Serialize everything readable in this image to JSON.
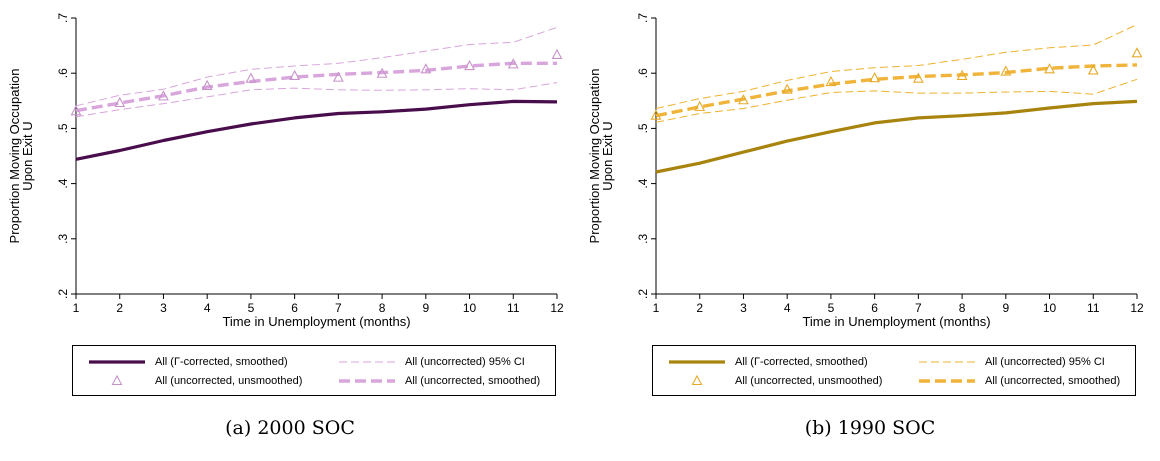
{
  "panels": [
    {
      "caption": "(a) 2000 SOC",
      "chart_data": {
        "type": "line",
        "xlabel": "Time in Unemployment (months)",
        "ylabel": [
          "Proportion Moving Occupation",
          "Upon Exit U"
        ],
        "xlim": [
          1,
          12
        ],
        "ylim": [
          0.2,
          0.7
        ],
        "x_ticks": [
          "1",
          "2",
          "3",
          "4",
          "5",
          "6",
          "7",
          "8",
          "9",
          "10",
          "11",
          "12"
        ],
        "y_ticks": [
          ".2",
          ".3",
          ".4",
          ".5",
          ".6",
          ".7"
        ],
        "x": [
          1,
          2,
          3,
          4,
          5,
          6,
          7,
          8,
          9,
          10,
          11,
          12
        ],
        "series": [
          {
            "name": "All (Γ-corrected, smoothed)",
            "style": "solid-thick",
            "color": "#4a0d4c",
            "values": [
              0.444,
              0.46,
              0.478,
              0.494,
              0.508,
              0.519,
              0.527,
              0.53,
              0.535,
              0.543,
              0.549,
              0.548
            ]
          },
          {
            "name": "All (uncorrected) 95% CI",
            "style": "dashed-thin",
            "color": "#d8a5dc",
            "upper": [
              0.541,
              0.56,
              0.571,
              0.593,
              0.607,
              0.613,
              0.618,
              0.628,
              0.64,
              0.652,
              0.656,
              0.683
            ],
            "lower": [
              0.521,
              0.534,
              0.545,
              0.557,
              0.57,
              0.573,
              0.57,
              0.569,
              0.57,
              0.572,
              0.57,
              0.583
            ]
          },
          {
            "name": "All (uncorrected, unsmoothed)",
            "style": "triangle",
            "color": "#c693c9",
            "values": [
              0.531,
              0.546,
              0.558,
              0.577,
              0.59,
              0.595,
              0.592,
              0.599,
              0.607,
              0.613,
              0.616,
              0.633
            ]
          },
          {
            "name": "All (uncorrected, smoothed)",
            "style": "dashed-thick",
            "color": "#d8a5dc",
            "values": [
              0.532,
              0.546,
              0.559,
              0.575,
              0.585,
              0.593,
              0.598,
              0.601,
              0.605,
              0.613,
              0.618,
              0.618
            ]
          }
        ],
        "legend": {
          "placement": "bottom",
          "columns": 2,
          "items": [
            {
              "label": "All (Γ-corrected, smoothed)",
              "series": 0
            },
            {
              "label": "All (uncorrected) 95% CI",
              "series": 1
            },
            {
              "label": "All (uncorrected, unsmoothed)",
              "series": 2
            },
            {
              "label": "All (uncorrected, smoothed)",
              "series": 3
            }
          ]
        }
      }
    },
    {
      "caption": "(b) 1990 SOC",
      "chart_data": {
        "type": "line",
        "xlabel": "Time in Unemployment (months)",
        "ylabel": [
          "Proportion Moving Occupation",
          "Upon Exit U"
        ],
        "xlim": [
          1,
          12
        ],
        "ylim": [
          0.2,
          0.7
        ],
        "x_ticks": [
          "1",
          "2",
          "3",
          "4",
          "5",
          "6",
          "7",
          "8",
          "9",
          "10",
          "11",
          "12"
        ],
        "y_ticks": [
          ".2",
          ".3",
          ".4",
          ".5",
          ".6",
          ".7"
        ],
        "x": [
          1,
          2,
          3,
          4,
          5,
          6,
          7,
          8,
          9,
          10,
          11,
          12
        ],
        "series": [
          {
            "name": "All (Γ-corrected, smoothed)",
            "style": "solid-thick",
            "color": "#a8840e",
            "values": [
              0.421,
              0.437,
              0.457,
              0.477,
              0.494,
              0.51,
              0.519,
              0.523,
              0.528,
              0.537,
              0.545,
              0.549
            ]
          },
          {
            "name": "All (uncorrected) 95% CI",
            "style": "dashed-thin",
            "color": "#eeb22c",
            "upper": [
              0.536,
              0.554,
              0.567,
              0.587,
              0.603,
              0.61,
              0.614,
              0.625,
              0.638,
              0.646,
              0.651,
              0.688
            ],
            "lower": [
              0.511,
              0.527,
              0.536,
              0.551,
              0.565,
              0.568,
              0.564,
              0.564,
              0.566,
              0.567,
              0.562,
              0.589
            ]
          },
          {
            "name": "All (uncorrected, unsmoothed)",
            "style": "triangle",
            "color": "#e5aa2a",
            "values": [
              0.523,
              0.539,
              0.551,
              0.57,
              0.584,
              0.591,
              0.59,
              0.595,
              0.603,
              0.607,
              0.605,
              0.636
            ]
          },
          {
            "name": "All (uncorrected, smoothed)",
            "style": "dashed-thick",
            "color": "#f0b43a",
            "values": [
              0.523,
              0.539,
              0.553,
              0.568,
              0.58,
              0.589,
              0.594,
              0.597,
              0.601,
              0.609,
              0.613,
              0.615
            ]
          }
        ],
        "legend": {
          "placement": "bottom",
          "columns": 2,
          "items": [
            {
              "label": "All (Γ-corrected, smoothed)",
              "series": 0
            },
            {
              "label": "All (uncorrected) 95% CI",
              "series": 1
            },
            {
              "label": "All (uncorrected, unsmoothed)",
              "series": 2
            },
            {
              "label": "All (uncorrected, smoothed)",
              "series": 3
            }
          ]
        }
      }
    }
  ]
}
